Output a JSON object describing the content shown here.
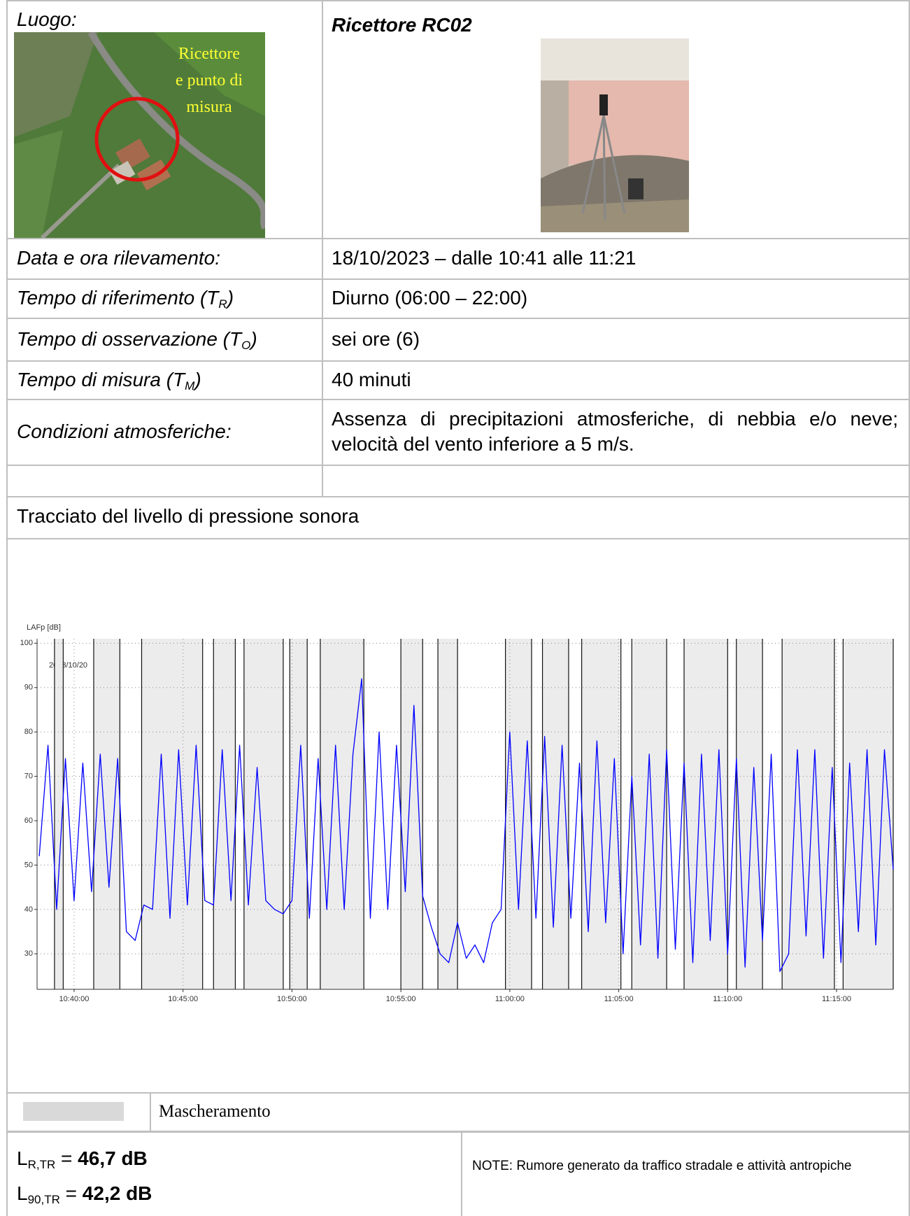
{
  "place_label": "Luogo:",
  "map_caption": [
    "Ricettore",
    "e punto di",
    "misura"
  ],
  "receptor": "Ricettore RC02",
  "rows": [
    {
      "label": [
        "Data e ora rilevamento:"
      ],
      "value": "18/10/2023 – dalle 10:41 alle 11:21"
    },
    {
      "label": [
        "Tempo di riferimento (T",
        "R",
        ")"
      ],
      "value": "Diurno (06:00 – 22:00)"
    },
    {
      "label": [
        "Tempo di osservazione (T",
        "O",
        ")"
      ],
      "value": "sei ore (6)"
    },
    {
      "label": [
        "Tempo di misura (T",
        "M",
        ")"
      ],
      "value": "40 minuti"
    },
    {
      "label": [
        "Condizioni atmosferiche:"
      ],
      "value": "Assenza di precipitazioni atmosferiche, di nebbia e/o neve; velocità del vento inferiore a 5 m/s."
    }
  ],
  "section_title": "Tracciato del livello di pressione sonora",
  "chart_data": {
    "type": "line",
    "ylabel": "LAFp [dB]",
    "date_label": "2023/10/20",
    "color": "#0000ff",
    "mask_color": "#ececec",
    "mask_label": "Mascheramento",
    "grid": true,
    "xlim": [
      38.3,
      77.6
    ],
    "ylim": [
      22,
      101
    ],
    "xticks": [
      {
        "value": 40,
        "label": "10:40:00"
      },
      {
        "value": 45,
        "label": "10:45:00"
      },
      {
        "value": 50,
        "label": "10:50:00"
      },
      {
        "value": 55,
        "label": "10:55:00"
      },
      {
        "value": 60,
        "label": "11:00:00"
      },
      {
        "value": 65,
        "label": "11:05:00"
      },
      {
        "value": 70,
        "label": "11:10:00"
      },
      {
        "value": 75,
        "label": "11:15:00"
      }
    ],
    "yticks": [
      30,
      40,
      50,
      60,
      70,
      80,
      90,
      100
    ],
    "masked": [
      [
        39.1,
        39.5
      ],
      [
        40.9,
        42.1
      ],
      [
        43.1,
        45.9
      ],
      [
        46.4,
        47.4
      ],
      [
        47.8,
        49.6
      ],
      [
        49.9,
        50.7
      ],
      [
        51.3,
        53.3
      ],
      [
        55.0,
        56.0
      ],
      [
        56.7,
        57.6
      ],
      [
        59.8,
        61.0
      ],
      [
        61.5,
        62.7
      ],
      [
        63.3,
        65.1
      ],
      [
        65.6,
        67.2
      ],
      [
        68.0,
        70.0
      ],
      [
        70.4,
        71.6
      ],
      [
        72.5,
        74.9
      ],
      [
        75.3,
        77.6
      ]
    ],
    "x": [
      38.4,
      38.8,
      39.2,
      39.6,
      40,
      40.4,
      40.8,
      41.2,
      41.6,
      42,
      42.4,
      42.8,
      43.2,
      43.6,
      44,
      44.4,
      44.8,
      45.2,
      45.6,
      46,
      46.4,
      46.8,
      47.2,
      47.6,
      48,
      48.4,
      48.8,
      49.2,
      49.6,
      50,
      50.4,
      50.8,
      51.2,
      51.6,
      52,
      52.4,
      52.8,
      53.2,
      53.6,
      54,
      54.4,
      54.8,
      55.2,
      55.6,
      56,
      56.4,
      56.8,
      57.2,
      57.6,
      58,
      58.4,
      58.8,
      59.2,
      59.6,
      60,
      60.4,
      60.8,
      61.2,
      61.6,
      62,
      62.4,
      62.8,
      63.2,
      63.6,
      64,
      64.4,
      64.8,
      65.2,
      65.6,
      66,
      66.4,
      66.8,
      67.2,
      67.6,
      68,
      68.4,
      68.8,
      69.2,
      69.6,
      70,
      70.4,
      70.8,
      71.2,
      71.6,
      72,
      72.4,
      72.8,
      73.2,
      73.6,
      74,
      74.4,
      74.8,
      75.2,
      75.6,
      76,
      76.4,
      76.8,
      77.2,
      77.6
    ],
    "values": [
      52,
      77,
      40,
      74,
      42,
      73,
      44,
      75,
      45,
      74,
      35,
      33,
      41,
      40,
      75,
      38,
      76,
      41,
      77,
      42,
      41,
      76,
      42,
      77,
      41,
      72,
      42,
      40,
      39,
      42,
      77,
      38,
      74,
      40,
      77,
      40,
      75,
      92,
      38,
      80,
      40,
      77,
      44,
      86,
      43,
      36,
      30,
      28,
      37,
      29,
      32,
      28,
      37,
      40,
      80,
      40,
      78,
      38,
      79,
      36,
      77,
      38,
      73,
      35,
      78,
      37,
      74,
      30,
      70,
      32,
      75,
      29,
      76,
      31,
      73,
      28,
      75,
      33,
      76,
      30,
      74,
      27,
      72,
      33,
      75,
      26,
      30,
      76,
      34,
      76,
      29,
      72,
      28,
      73,
      35,
      76,
      32,
      76,
      49
    ]
  },
  "results": [
    {
      "symbol": "L",
      "sub": "R,TR",
      "eq": "=",
      "value": "46,7 dB"
    },
    {
      "symbol": "L",
      "sub": "90,TR",
      "eq": "=",
      "value": "42,2 dB"
    }
  ],
  "note": "NOTE: Rumore generato da traffico stradale e attività antropiche"
}
